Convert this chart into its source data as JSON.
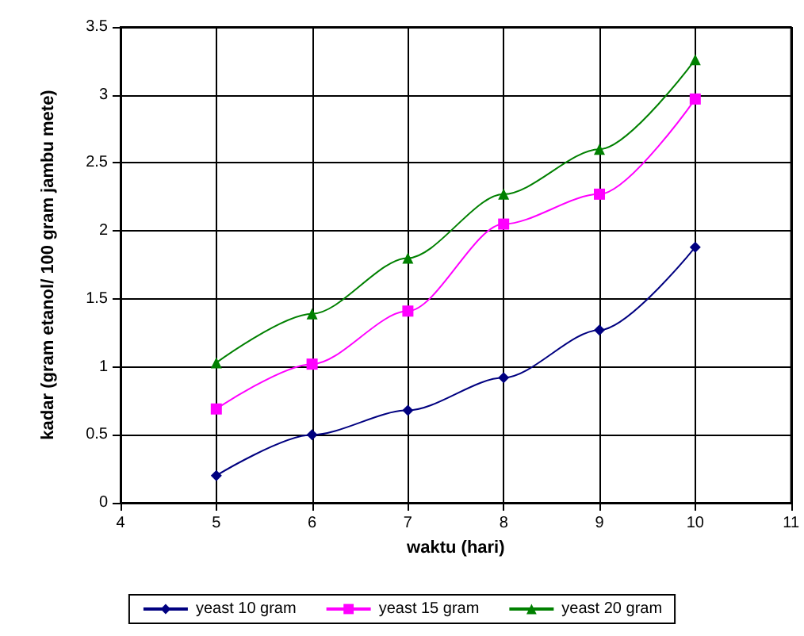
{
  "chart_data": {
    "type": "line",
    "xlabel": "waktu (hari)",
    "ylabel": "kadar (gram etanol/ 100 gram jambu mete)",
    "x": [
      5,
      6,
      7,
      8,
      9,
      10
    ],
    "series": [
      {
        "name": "yeast 10 gram",
        "color": "#000080",
        "marker": "diamond",
        "values": [
          0.2,
          0.5,
          0.68,
          0.92,
          1.27,
          1.88
        ]
      },
      {
        "name": "yeast 15 gram",
        "color": "#ff00ff",
        "marker": "square",
        "values": [
          0.69,
          1.02,
          1.41,
          2.05,
          2.27,
          2.97
        ]
      },
      {
        "name": "yeast 20 gram",
        "color": "#008000",
        "marker": "triangle",
        "values": [
          1.03,
          1.39,
          1.8,
          2.27,
          2.6,
          3.26
        ]
      }
    ],
    "xlim": [
      4,
      11
    ],
    "xticks": [
      4,
      5,
      6,
      7,
      8,
      9,
      10,
      11
    ],
    "ylim": [
      0,
      3.5
    ],
    "yticks": [
      0,
      0.5,
      1,
      1.5,
      2,
      2.5,
      3,
      3.5
    ],
    "grid": true,
    "legend": "bottom",
    "line_style": "solid"
  }
}
